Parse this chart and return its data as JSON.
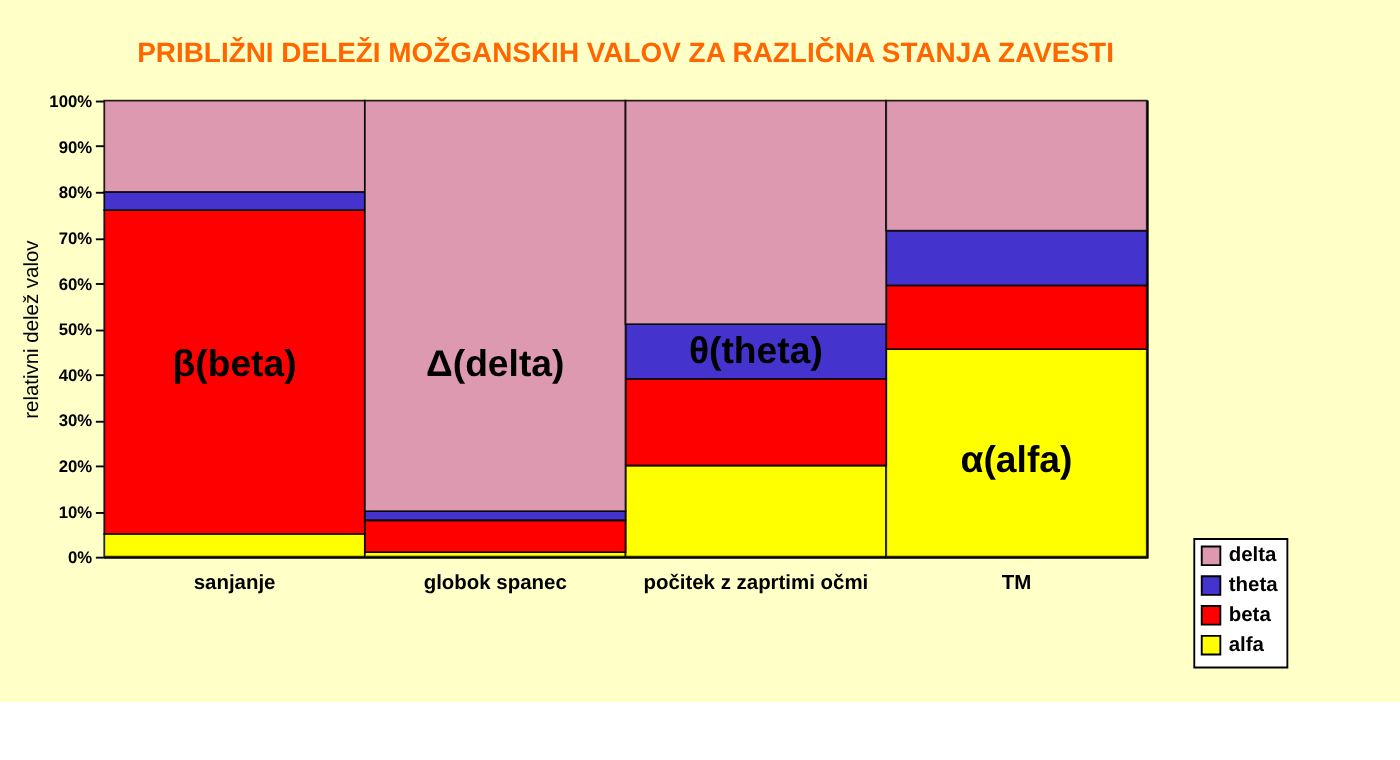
{
  "chart_data": {
    "type": "bar",
    "stacked": true,
    "title": "PRIBLIŽNI DELEŽI MOŽGANSKIH VALOV ZA RAZLIČNA STANJA ZAVESTI",
    "ylabel": "relativni delež valov",
    "categories": [
      "sanjanje",
      "globok spanec",
      "počitek z zaprtimi očmi",
      "TM"
    ],
    "series": [
      {
        "name": "alfa",
        "color": "#ffff00",
        "values": [
          5,
          1,
          20,
          45.5
        ]
      },
      {
        "name": "beta",
        "color": "#ff0000",
        "values": [
          71,
          7,
          19,
          14
        ]
      },
      {
        "name": "theta",
        "color": "#4433cc",
        "values": [
          4,
          2,
          12,
          12
        ]
      },
      {
        "name": "delta",
        "color": "#dd99b0",
        "values": [
          20,
          90,
          49,
          28.5
        ]
      }
    ],
    "ylim": [
      0,
      100
    ],
    "yticks": [
      {
        "value": 0,
        "label": "0%"
      },
      {
        "value": 10,
        "label": "10%"
      },
      {
        "value": 20,
        "label": "20%"
      },
      {
        "value": 30,
        "label": "30%"
      },
      {
        "value": 40,
        "label": "40%"
      },
      {
        "value": 50,
        "label": "50%"
      },
      {
        "value": 60,
        "label": "60%"
      },
      {
        "value": 70,
        "label": "70%"
      },
      {
        "value": 80,
        "label": "80%"
      },
      {
        "value": 90,
        "label": "90%"
      },
      {
        "value": 100,
        "label": "100%"
      }
    ],
    "annotations": [
      "β(beta)",
      "Δ(delta)",
      "θ(theta)",
      "α(alfa)"
    ],
    "grid": false,
    "legend": "bottom right"
  }
}
